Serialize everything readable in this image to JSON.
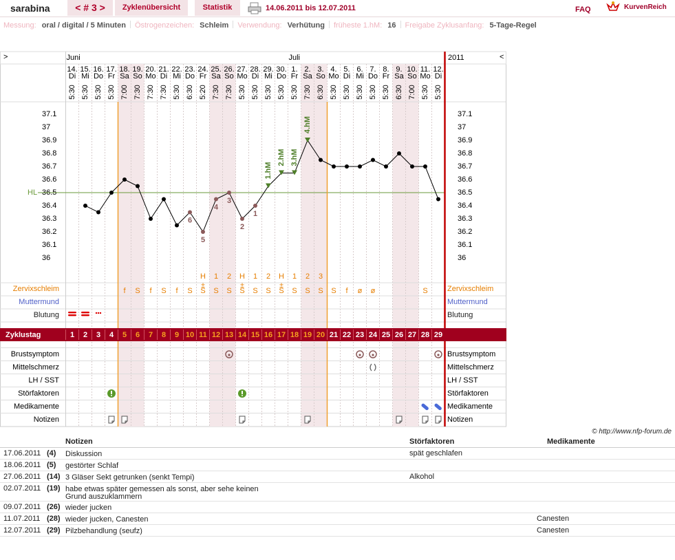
{
  "header": {
    "user": "sarabina",
    "cycle_nav": "< # 3 >",
    "tabs": [
      "Zyklenübersicht",
      "Statistik"
    ],
    "period": "14.06.2011 bis 12.07.2011",
    "faq": "FAQ",
    "brand": "KurvenReich"
  },
  "settings": [
    {
      "label": "Messung:",
      "value": "oral / digital / 5 Minuten"
    },
    {
      "label": "Östrogenzeichen:",
      "value": "Schleim"
    },
    {
      "label": "Verwendung:",
      "value": "Verhütung"
    },
    {
      "label": "früheste 1.hM:",
      "value": "16"
    },
    {
      "label": "Freigabe Zyklusanfang:",
      "value": "5-Tage-Regel"
    }
  ],
  "chart_data": {
    "type": "line",
    "nav_left": ">",
    "nav_right": "<",
    "year": "2011",
    "months": [
      "Juni",
      "Juli"
    ],
    "categories": [
      "14.",
      "15.",
      "16.",
      "17.",
      "18.",
      "19.",
      "20.",
      "21.",
      "22.",
      "23.",
      "24.",
      "25.",
      "26.",
      "27.",
      "28.",
      "29.",
      "30.",
      "1.",
      "2.",
      "3.",
      "4.",
      "5.",
      "6.",
      "7.",
      "8.",
      "9.",
      "10.",
      "11.",
      "12."
    ],
    "weekdays": [
      "Di",
      "Mi",
      "Do",
      "Fr",
      "Sa",
      "So",
      "Mo",
      "Di",
      "Mi",
      "Do",
      "Fr",
      "Sa",
      "So",
      "Mo",
      "Di",
      "Mi",
      "Do",
      "Fr",
      "Sa",
      "So",
      "Mo",
      "Di",
      "Mi",
      "Do",
      "Fr",
      "Sa",
      "So",
      "Mo",
      "Di"
    ],
    "times": [
      "5:30",
      "5:30",
      "5:30",
      "5:30",
      "7:00",
      "7:30",
      "7:30",
      "7:30",
      "5:30",
      "6:30",
      "5:20",
      "7:30",
      "7:30",
      "5:30",
      "5:30",
      "5:30",
      "5:30",
      "5:30",
      "7:30",
      "6:30",
      "5:30",
      "5:30",
      "5:30",
      "5:30",
      "5:30",
      "6:30",
      "7:00",
      "5:30",
      "5:30"
    ],
    "values": [
      null,
      36.4,
      36.35,
      36.5,
      36.6,
      36.55,
      36.3,
      36.45,
      36.25,
      36.35,
      36.2,
      36.45,
      36.5,
      36.3,
      36.4,
      36.55,
      36.65,
      36.65,
      36.9,
      36.75,
      36.7,
      36.7,
      36.7,
      36.75,
      36.7,
      36.8,
      36.7,
      36.7,
      36.45
    ],
    "point_labels": [
      null,
      null,
      null,
      null,
      null,
      null,
      null,
      null,
      null,
      "6",
      "5",
      "4",
      "3",
      "2",
      "1",
      "1.hM",
      "2.hM",
      "3.hM",
      "4.hM",
      null,
      null,
      null,
      null,
      null,
      null,
      null,
      null,
      null,
      null
    ],
    "color": "#000000",
    "low_color": "#8b5a5a",
    "hm_color": "#4f7f2a",
    "ylim": [
      35.8,
      37.2
    ],
    "yticks": [
      37.1,
      37,
      36.9,
      36.8,
      36.7,
      36.6,
      36.5,
      36.4,
      36.3,
      36.2,
      36.1,
      36
    ],
    "grid": false,
    "hl": {
      "label": "HL",
      "value": 36.5,
      "color": "#6a9a3a"
    }
  },
  "rows": {
    "hcount": [
      null,
      null,
      null,
      null,
      null,
      null,
      null,
      null,
      null,
      null,
      "H",
      "1",
      "2",
      "H",
      "1",
      "2",
      "H",
      "1",
      "2",
      "3",
      null,
      null,
      null,
      null,
      null,
      null,
      null,
      null,
      null
    ],
    "zervix_label": "Zervixschleim",
    "zervix_plus": [
      null,
      null,
      null,
      null,
      null,
      null,
      null,
      null,
      null,
      null,
      "±",
      null,
      null,
      "±",
      null,
      null,
      "±",
      null,
      null,
      null,
      null,
      null,
      null,
      null,
      null,
      null,
      null,
      null,
      null
    ],
    "zervix": [
      null,
      null,
      null,
      null,
      "f",
      "S",
      "f",
      "S",
      "f",
      "S",
      "S",
      "S",
      "S",
      "S",
      "S",
      "S",
      "S",
      "S",
      "S",
      "S",
      "S",
      "f",
      "ø",
      "ø",
      null,
      null,
      null,
      "S",
      null
    ],
    "muttermund_label": "Muttermund",
    "blutung_label": "Blutung",
    "zyklustag_label": "Zyklustag",
    "cycle_days": [
      1,
      2,
      3,
      4,
      5,
      6,
      7,
      8,
      9,
      10,
      11,
      12,
      13,
      14,
      15,
      16,
      17,
      18,
      19,
      20,
      21,
      22,
      23,
      24,
      25,
      26,
      27,
      28,
      29
    ],
    "symptoms": [
      "Brustsymptom",
      "Mittelschmerz",
      "LH / SST",
      "Störfaktoren",
      "Medikamente",
      "Notizen"
    ]
  },
  "copyright": "© http://www.nfp-forum.de",
  "notes_table": {
    "headers": [
      "Notizen",
      "Störfaktoren",
      "Medikamente"
    ],
    "rows": [
      [
        "17.06.2011",
        "(4)",
        "Diskussion",
        "spät geschlafen",
        null
      ],
      [
        "18.06.2011",
        "(5)",
        "gestörter Schlaf",
        null,
        null
      ],
      [
        "27.06.2011",
        "(14)",
        "3 Gläser Sekt getrunken (senkt Tempi)",
        "Alkohol",
        null
      ],
      [
        "02.07.2011",
        "(19)",
        "habe etwas später gemessen als sonst, aber sehe keinen Grund auszuklammern",
        null,
        null
      ],
      [
        "09.07.2011",
        "(26)",
        "wieder jucken",
        null,
        null
      ],
      [
        "11.07.2011",
        "(28)",
        "wieder jucken, Canesten",
        null,
        "Canesten"
      ],
      [
        "12.07.2011",
        "(29)",
        "Pilzbehandlung (seufz)",
        null,
        "Canesten"
      ]
    ]
  }
}
